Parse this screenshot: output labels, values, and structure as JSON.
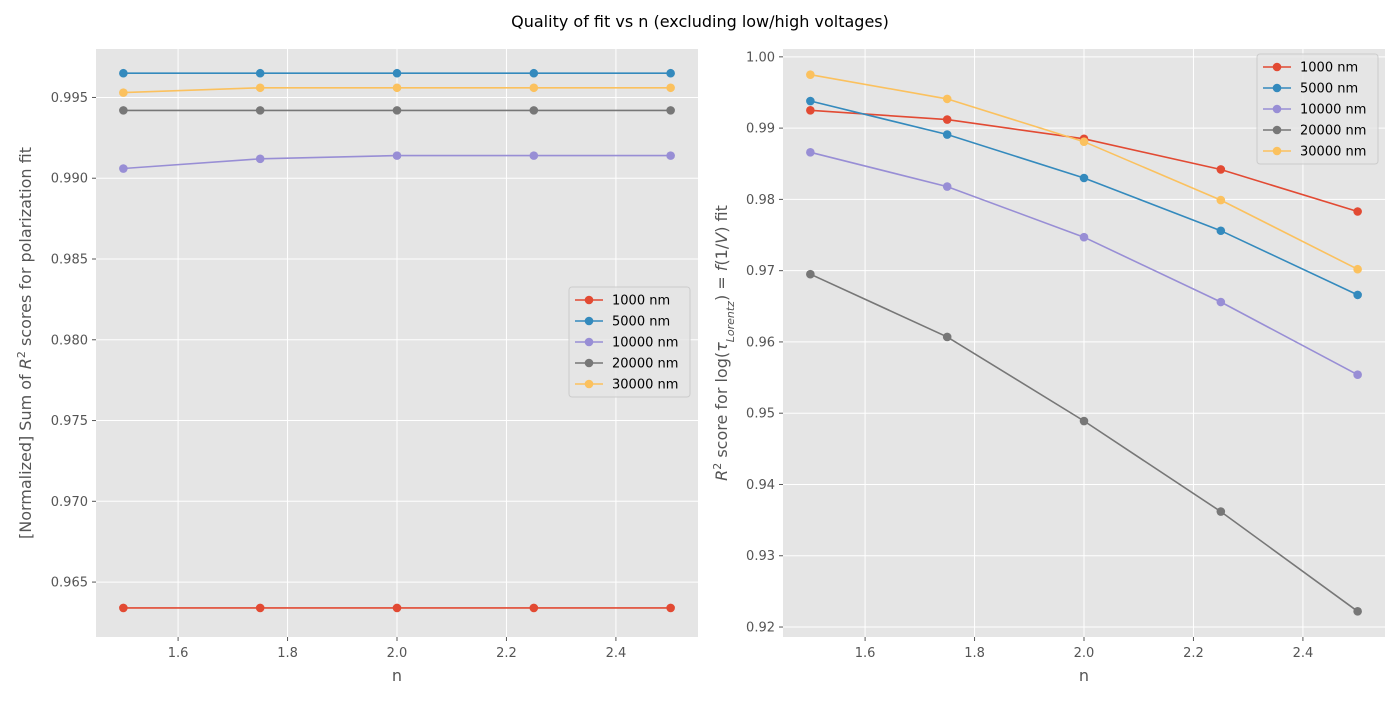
{
  "figure": {
    "title": "Quality of fit vs n (excluding low/high voltages)"
  },
  "chart_data": [
    {
      "type": "line",
      "xlabel": "n",
      "ylabel": "[Normalized] Sum of R² scores for polarization fit",
      "ylabel_parts": [
        {
          "t": "[Normalized] Sum of "
        },
        {
          "t": "R",
          "italic": true
        },
        {
          "t": "2",
          "sup": true
        },
        {
          "t": " scores for polarization fit"
        }
      ],
      "x": [
        1.5,
        1.75,
        2.0,
        2.25,
        2.5
      ],
      "xlim": [
        1.45,
        2.55
      ],
      "ylim": [
        0.9616,
        0.998
      ],
      "xticks": [
        1.6,
        1.8,
        2.0,
        2.2,
        2.4
      ],
      "xtick_labels": [
        "1.6",
        "1.8",
        "2.0",
        "2.2",
        "2.4"
      ],
      "yticks": [
        0.965,
        0.97,
        0.975,
        0.98,
        0.985,
        0.99,
        0.995
      ],
      "ytick_labels": [
        "0.965",
        "0.970",
        "0.975",
        "0.980",
        "0.985",
        "0.990",
        "0.995"
      ],
      "grid": true,
      "legend_position": "center-right",
      "series": [
        {
          "name": "1000 nm",
          "color": "#E24A33",
          "values": [
            0.9634,
            0.9634,
            0.9634,
            0.9634,
            0.9634
          ]
        },
        {
          "name": "5000 nm",
          "color": "#348ABD",
          "values": [
            0.9965,
            0.9965,
            0.9965,
            0.9965,
            0.9965
          ]
        },
        {
          "name": "10000 nm",
          "color": "#988ED5",
          "values": [
            0.9906,
            0.9912,
            0.9914,
            0.9914,
            0.9914
          ]
        },
        {
          "name": "20000 nm",
          "color": "#777777",
          "values": [
            0.9942,
            0.9942,
            0.9942,
            0.9942,
            0.9942
          ]
        },
        {
          "name": "30000 nm",
          "color": "#FBC15E",
          "values": [
            0.9953,
            0.9956,
            0.9956,
            0.9956,
            0.9956
          ]
        }
      ]
    },
    {
      "type": "line",
      "xlabel": "n",
      "ylabel": "R² score for log(τ_Lorentz) = f(1/V) fit",
      "ylabel_parts": [
        {
          "t": "R",
          "italic": true
        },
        {
          "t": "2",
          "sup": true
        },
        {
          "t": " score for log("
        },
        {
          "t": "τ",
          "italic": true
        },
        {
          "t": "Lorentz",
          "sub": true,
          "italic": true
        },
        {
          "t": ") = "
        },
        {
          "t": "f",
          "italic": true
        },
        {
          "t": "(1/"
        },
        {
          "t": "V",
          "italic": true
        },
        {
          "t": ") fit"
        }
      ],
      "x": [
        1.5,
        1.75,
        2.0,
        2.25,
        2.5
      ],
      "xlim": [
        1.45,
        2.55
      ],
      "ylim": [
        0.9186,
        1.0011
      ],
      "xticks": [
        1.6,
        1.8,
        2.0,
        2.2,
        2.4
      ],
      "xtick_labels": [
        "1.6",
        "1.8",
        "2.0",
        "2.2",
        "2.4"
      ],
      "yticks": [
        0.92,
        0.93,
        0.94,
        0.95,
        0.96,
        0.97,
        0.98,
        0.99,
        1.0
      ],
      "ytick_labels": [
        "0.92",
        "0.93",
        "0.94",
        "0.95",
        "0.96",
        "0.97",
        "0.98",
        "0.99",
        "1.00"
      ],
      "grid": true,
      "legend_position": "top-right",
      "series": [
        {
          "name": "1000 nm",
          "color": "#E24A33",
          "values": [
            0.9925,
            0.9912,
            0.9885,
            0.9842,
            0.9783
          ]
        },
        {
          "name": "5000 nm",
          "color": "#348ABD",
          "values": [
            0.9938,
            0.9891,
            0.983,
            0.9756,
            0.9666
          ]
        },
        {
          "name": "10000 nm",
          "color": "#988ED5",
          "values": [
            0.9866,
            0.9818,
            0.9747,
            0.9656,
            0.9554
          ]
        },
        {
          "name": "20000 nm",
          "color": "#777777",
          "values": [
            0.9695,
            0.9607,
            0.9489,
            0.9362,
            0.9222
          ]
        },
        {
          "name": "30000 nm",
          "color": "#FBC15E",
          "values": [
            0.9975,
            0.9941,
            0.9881,
            0.9799,
            0.9702
          ]
        }
      ]
    }
  ]
}
